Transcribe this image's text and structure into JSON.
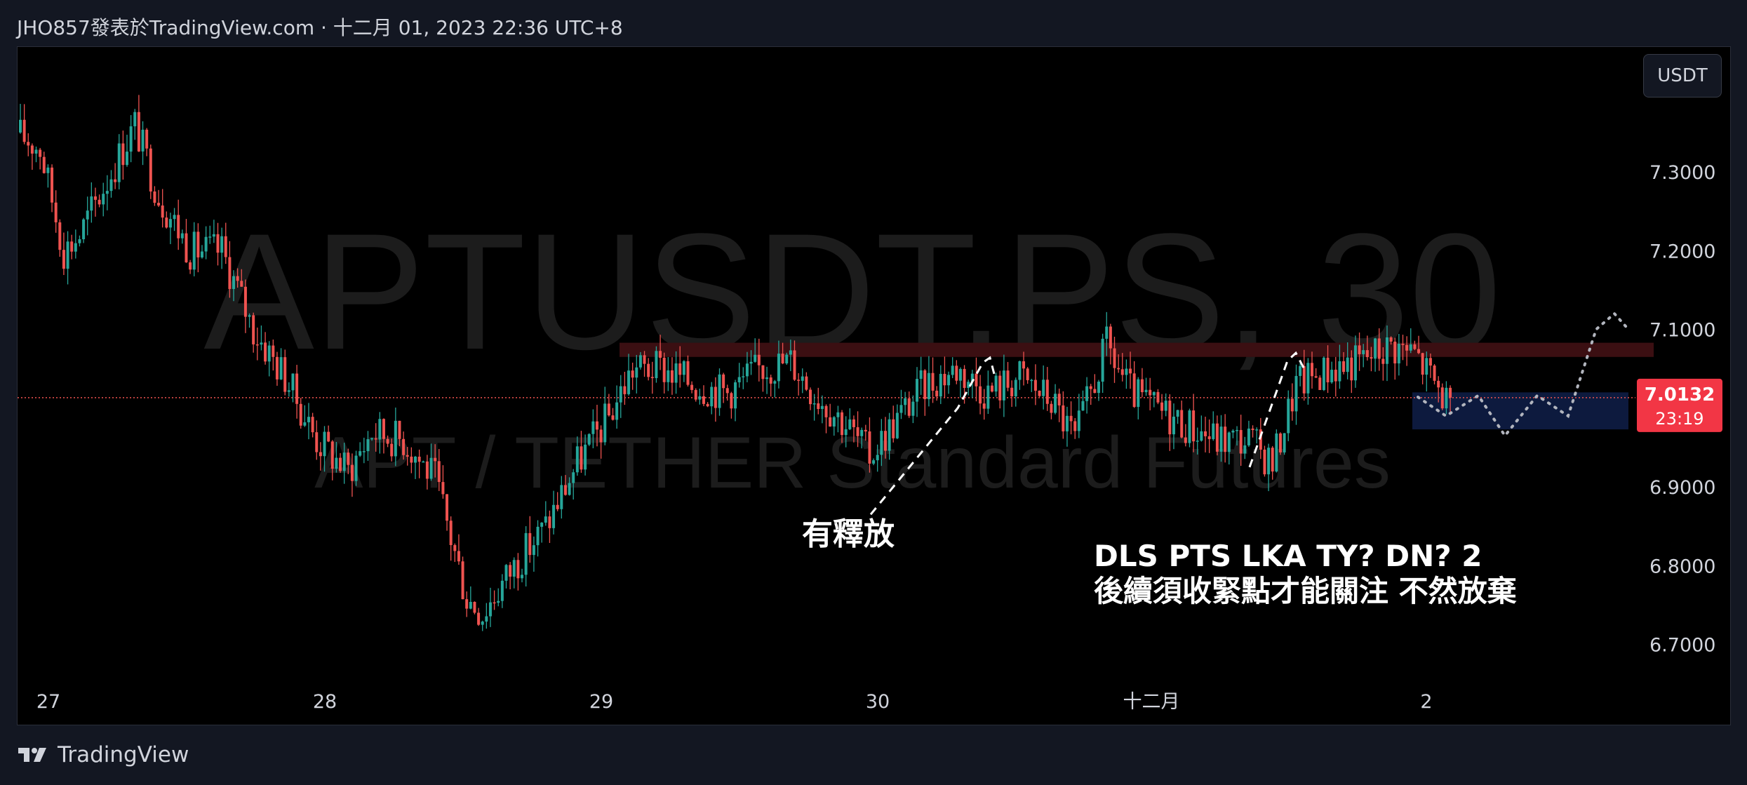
{
  "header": {
    "attribution": "JHO857發表於TradingView.com · 十二月 01, 2023 22:36 UTC+8"
  },
  "currency_badge": "USDT",
  "footer": {
    "brand": "TradingView"
  },
  "colors": {
    "up": "#26a69a",
    "down": "#ef5350",
    "background": "#000000",
    "frame": "#131722",
    "resistance_band": "#3b0f12",
    "forecast_box": "#0d1a3e",
    "price_label": "#f23645"
  },
  "chart_data": {
    "type": "candlestick",
    "symbol_watermark": "APTUSDT.PS, 30",
    "description_watermark": "APT / TETHER Standard Futures",
    "y_ticks": [
      "7.3000",
      "7.2000",
      "7.1000",
      "6.9000",
      "6.8000",
      "6.7000"
    ],
    "y_tick_values": [
      7.3,
      7.2,
      7.1,
      6.9,
      6.8,
      6.7
    ],
    "x_ticks": [
      "27",
      "28",
      "29",
      "30",
      "十二月",
      "2"
    ],
    "ylim": [
      6.61,
      7.4
    ],
    "last_price": {
      "value": 7.0132,
      "label": "7.0132",
      "countdown": "23:19"
    },
    "resistance_zone": [
      7.065,
      7.083
    ],
    "forecast_box": [
      6.973,
      7.02
    ],
    "annotations": [
      {
        "text": "有釋放"
      },
      {
        "text": "DLS PTS LKA TY? DN? 2"
      },
      {
        "text": "後續須收緊點才能關注 不然放棄"
      }
    ],
    "candles_note": "30-minute candles from Nov 27 to Dec 1 2023; generated to follow traced price path",
    "path_knots": [
      [
        0,
        7.35
      ],
      [
        6,
        7.33
      ],
      [
        12,
        7.2
      ],
      [
        16,
        7.22
      ],
      [
        24,
        7.3
      ],
      [
        30,
        7.36
      ],
      [
        36,
        7.27
      ],
      [
        44,
        7.2
      ],
      [
        52,
        7.2
      ],
      [
        60,
        7.1
      ],
      [
        68,
        7.04
      ],
      [
        76,
        6.96
      ],
      [
        84,
        6.92
      ],
      [
        90,
        6.97
      ],
      [
        98,
        6.96
      ],
      [
        106,
        6.91
      ],
      [
        114,
        6.76
      ],
      [
        118,
        6.74
      ],
      [
        126,
        6.8
      ],
      [
        134,
        6.85
      ],
      [
        142,
        6.93
      ],
      [
        150,
        6.99
      ],
      [
        156,
        7.05
      ],
      [
        164,
        7.05
      ],
      [
        172,
        7.03
      ],
      [
        180,
        7.02
      ],
      [
        188,
        7.05
      ],
      [
        196,
        7.06
      ],
      [
        202,
        7.02
      ],
      [
        210,
        6.98
      ],
      [
        216,
        6.94
      ],
      [
        222,
        6.98
      ],
      [
        230,
        7.03
      ],
      [
        238,
        7.05
      ],
      [
        246,
        7.02
      ],
      [
        254,
        7.04
      ],
      [
        262,
        7.01
      ],
      [
        268,
        6.96
      ],
      [
        276,
        7.08
      ],
      [
        282,
        7.02
      ],
      [
        288,
        7.0
      ],
      [
        296,
        6.98
      ],
      [
        304,
        6.96
      ],
      [
        312,
        6.96
      ],
      [
        318,
        6.93
      ],
      [
        324,
        7.03
      ],
      [
        332,
        7.05
      ],
      [
        340,
        7.06
      ],
      [
        348,
        7.08
      ],
      [
        354,
        7.07
      ],
      [
        362,
        7.01
      ]
    ],
    "forecast_path": [
      [
        7.014
      ],
      [
        6.99
      ],
      [
        7.016
      ],
      [
        6.965
      ],
      [
        7.016
      ],
      [
        6.99
      ],
      [
        7.1
      ],
      [
        7.12
      ],
      [
        7.1
      ]
    ]
  }
}
